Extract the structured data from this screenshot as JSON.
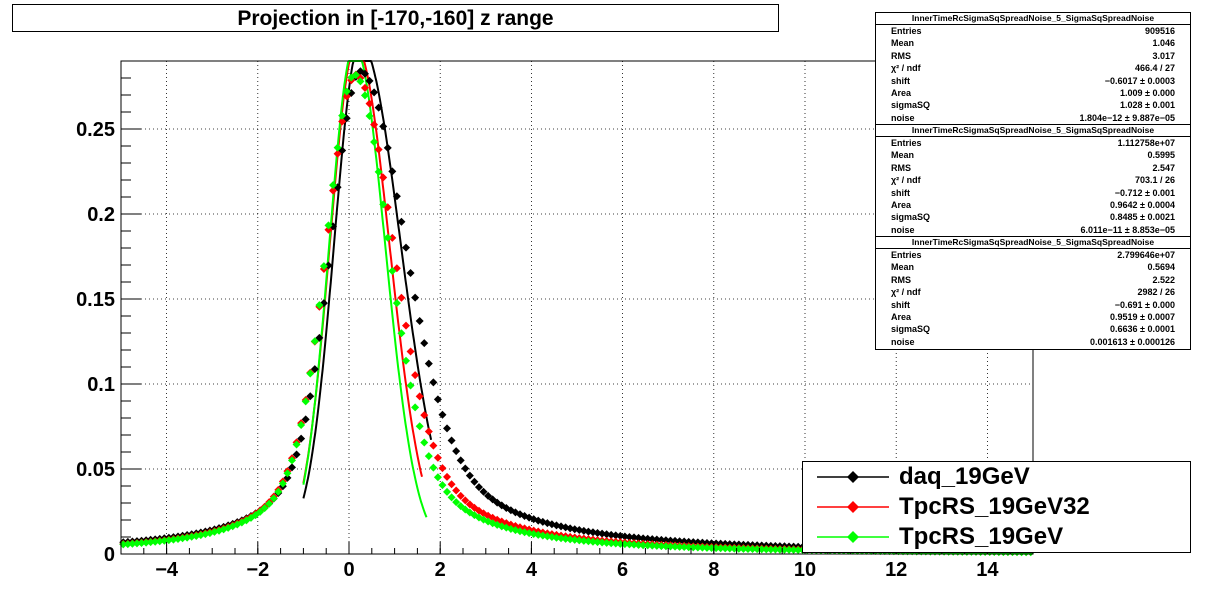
{
  "title": "Projection in [-170,-160] z range",
  "chart_data": {
    "type": "scatter",
    "xlim": [
      -5,
      15
    ],
    "ylim": [
      0,
      0.29
    ],
    "x_ticks": [
      -4,
      -2,
      0,
      2,
      4,
      6,
      8,
      10,
      12,
      14
    ],
    "y_ticks": [
      0,
      0.05,
      0.1,
      0.15,
      0.2,
      0.25
    ],
    "grid": true,
    "legend_position": "bottom-right",
    "series": [
      {
        "name": "daq_19GeV",
        "color": "#000000",
        "peak_x": 0.25,
        "peak_y": 0.278,
        "sigma_left": 0.62,
        "sigma_right": 0.95,
        "tail": 0.006,
        "fit_range": [
          -1.0,
          1.8
        ]
      },
      {
        "name": "TpcRS_19GeV32",
        "color": "#ff0000",
        "peak_x": 0.15,
        "peak_y": 0.279,
        "sigma_left": 0.62,
        "sigma_right": 0.8,
        "tail": 0.003,
        "fit_range": [
          -1.0,
          1.6
        ]
      },
      {
        "name": "TpcRS_19GeV",
        "color": "#00ff00",
        "peak_x": 0.12,
        "peak_y": 0.279,
        "sigma_left": 0.6,
        "sigma_right": 0.73,
        "tail": 0.003,
        "fit_range": [
          -1.0,
          1.7
        ]
      }
    ]
  },
  "stats_boxes": [
    {
      "name": "InnerTimeRcSigmaSqSpreadNoise_5_SigmaSqSpreadNoise",
      "rows": [
        {
          "label": "Entries",
          "value": "909516"
        },
        {
          "label": "Mean",
          "value": "1.046"
        },
        {
          "label": "RMS",
          "value": "3.017"
        },
        {
          "label": "χ² / ndf",
          "value": "466.4 / 27"
        },
        {
          "label": "shift",
          "value": "−0.6017 ± 0.0003"
        },
        {
          "label": "Area",
          "value": "1.009 ± 0.000"
        },
        {
          "label": "sigmaSQ",
          "value": "1.028 ± 0.001"
        },
        {
          "label": "noise",
          "value": "1.804e−12 ± 9.887e−05"
        }
      ]
    },
    {
      "name": "InnerTimeRcSigmaSqSpreadNoise_5_SigmaSqSpreadNoise",
      "rows": [
        {
          "label": "Entries",
          "value": "1.112758e+07"
        },
        {
          "label": "Mean",
          "value": "0.5995"
        },
        {
          "label": "RMS",
          "value": "2.547"
        },
        {
          "label": "χ² / ndf",
          "value": "703.1 / 26"
        },
        {
          "label": "shift",
          "value": "−0.712 ± 0.001"
        },
        {
          "label": "Area",
          "value": "0.9642 ± 0.0004"
        },
        {
          "label": "sigmaSQ",
          "value": "0.8485 ± 0.0021"
        },
        {
          "label": "noise",
          "value": "6.011e−11 ± 8.853e−05"
        }
      ]
    },
    {
      "name": "InnerTimeRcSigmaSqSpreadNoise_5_SigmaSqSpreadNoise",
      "rows": [
        {
          "label": "Entries",
          "value": "2.799646e+07"
        },
        {
          "label": "Mean",
          "value": "0.5694"
        },
        {
          "label": "RMS",
          "value": "2.522"
        },
        {
          "label": "χ² / ndf",
          "value": "2982 / 26"
        },
        {
          "label": "shift",
          "value": "−0.691 ± 0.000"
        },
        {
          "label": "Area",
          "value": "0.9519 ± 0.0007"
        },
        {
          "label": "sigmaSQ",
          "value": "0.6636 ± 0.0001"
        },
        {
          "label": "noise",
          "value": "0.001613 ± 0.000126"
        }
      ]
    }
  ],
  "legend": [
    {
      "label": "daq_19GeV",
      "color": "#000000"
    },
    {
      "label": "TpcRS_19GeV32",
      "color": "#ff0000"
    },
    {
      "label": "TpcRS_19GeV",
      "color": "#00ff00"
    }
  ]
}
